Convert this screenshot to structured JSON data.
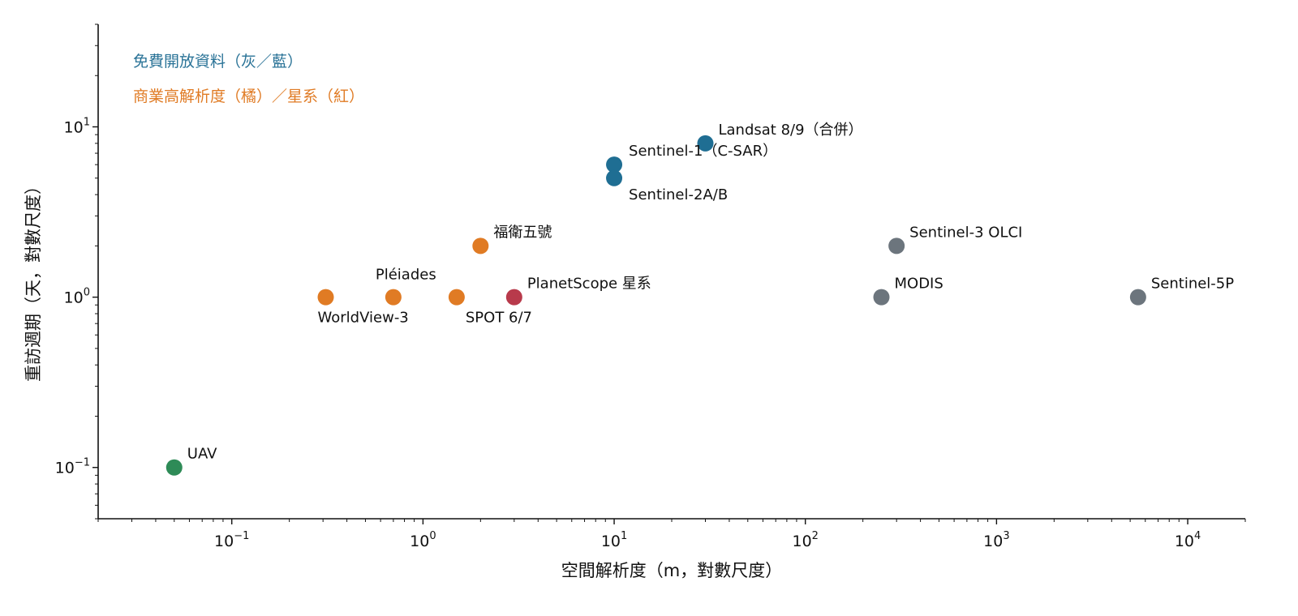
{
  "chart_data": {
    "type": "scatter",
    "xlabel": "空間解析度（m，對數尺度）",
    "ylabel": "重訪週期（天，對數尺度）",
    "x_scale": "log",
    "y_scale": "log",
    "xlim": [
      0.02,
      20000
    ],
    "ylim": [
      0.05,
      40
    ],
    "x_ticks": [
      {
        "base": "10",
        "exp": "−1",
        "value": 0.1
      },
      {
        "base": "10",
        "exp": "0",
        "value": 1
      },
      {
        "base": "10",
        "exp": "1",
        "value": 10
      },
      {
        "base": "10",
        "exp": "2",
        "value": 100
      },
      {
        "base": "10",
        "exp": "3",
        "value": 1000
      },
      {
        "base": "10",
        "exp": "4",
        "value": 10000
      }
    ],
    "y_ticks": [
      {
        "base": "10",
        "exp": "−1",
        "value": 0.1
      },
      {
        "base": "10",
        "exp": "0",
        "value": 1
      },
      {
        "base": "10",
        "exp": "1",
        "value": 10
      }
    ],
    "grid": false,
    "legend": [
      {
        "text": "免費開放資料（灰／藍）",
        "color": "#2a7397"
      },
      {
        "text": "商業高解析度（橘）／星系（紅）",
        "color": "#e07b24"
      }
    ],
    "legend_placement": "top-left",
    "colors": {
      "blue": "#1f6e93",
      "gray": "#6c757d",
      "orange": "#e07b24",
      "red": "#b83a4b",
      "green": "#2e8b57"
    },
    "points": [
      {
        "label": "UAV",
        "x": 0.05,
        "y": 0.1,
        "color": "green",
        "label_pos": "above-right"
      },
      {
        "label": "WorldView-3",
        "x": 0.31,
        "y": 1,
        "color": "orange",
        "label_pos": "below-right"
      },
      {
        "label": "Pléiades",
        "x": 0.7,
        "y": 1,
        "color": "orange",
        "label_pos": "above-left"
      },
      {
        "label": "SPOT 6/7",
        "x": 1.5,
        "y": 1,
        "color": "orange",
        "label_pos": "below-right"
      },
      {
        "label": "福衛五號",
        "x": 2,
        "y": 2,
        "color": "orange",
        "label_pos": "above-right"
      },
      {
        "label": "PlanetScope 星系",
        "x": 3,
        "y": 1,
        "color": "red",
        "label_pos": "above-right"
      },
      {
        "label": "Sentinel-1（C-SAR）",
        "x": 10,
        "y": 6,
        "color": "blue",
        "label_pos": "right"
      },
      {
        "label": "Sentinel-2A/B",
        "x": 10,
        "y": 5,
        "color": "blue",
        "label_pos": "below-right"
      },
      {
        "label": "Landsat 8/9（合併）",
        "x": 30,
        "y": 8,
        "color": "blue",
        "label_pos": "above-right"
      },
      {
        "label": "MODIS",
        "x": 250,
        "y": 1,
        "color": "gray",
        "label_pos": "above-right"
      },
      {
        "label": "Sentinel-3 OLCI",
        "x": 300,
        "y": 2,
        "color": "gray",
        "label_pos": "above-right"
      },
      {
        "label": "Sentinel-5P",
        "x": 5500,
        "y": 1,
        "color": "gray",
        "label_pos": "above-right"
      }
    ]
  }
}
